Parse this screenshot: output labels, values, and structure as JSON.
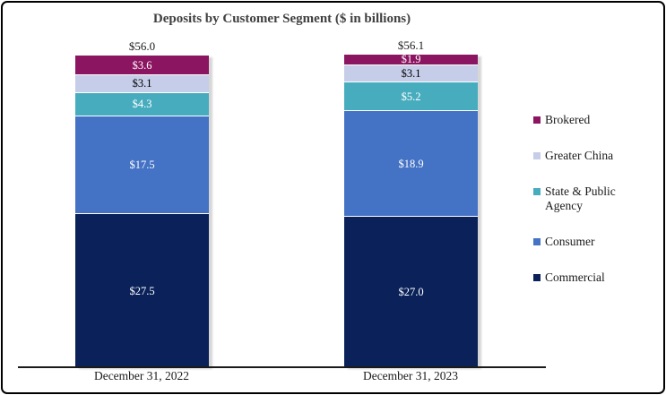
{
  "chart_data": {
    "type": "bar",
    "subtype": "stacked-column",
    "title": "Deposits by Customer Segment ($ in billions)",
    "categories": [
      "December 31, 2022",
      "December 31, 2023"
    ],
    "totals": [
      "$56.0",
      "$56.1"
    ],
    "series": [
      {
        "name": "Commercial",
        "color": "#0a2259",
        "label_color": "#ffffff",
        "values": [
          27.5,
          27.0
        ],
        "labels": [
          "$27.5",
          "$27.0"
        ]
      },
      {
        "name": "Consumer",
        "color": "#4472c4",
        "label_color": "#ffffff",
        "values": [
          17.5,
          18.9
        ],
        "labels": [
          "$17.5",
          "$18.9"
        ]
      },
      {
        "name": "State & Public Agency",
        "color": "#47acbe",
        "label_color": "#ffffff",
        "values": [
          4.3,
          5.2
        ],
        "labels": [
          "$4.3",
          "$5.2"
        ]
      },
      {
        "name": "Greater China",
        "color": "#c5cde8",
        "label_color": "#000000",
        "values": [
          3.1,
          3.1
        ],
        "labels": [
          "$3.1",
          "$3.1"
        ]
      },
      {
        "name": "Brokered",
        "color": "#8b1560",
        "label_color": "#ffffff",
        "values": [
          3.6,
          1.9
        ],
        "labels": [
          "$3.6",
          "$1.9"
        ]
      }
    ],
    "legend_order": [
      "Brokered",
      "Greater China",
      "State & Public Agency",
      "Consumer",
      "Commercial"
    ],
    "legend_position": "right",
    "ylim": [
      0,
      56.1
    ],
    "grid": false,
    "axis_color": "#1a1a1a",
    "title_color": "#404040"
  }
}
